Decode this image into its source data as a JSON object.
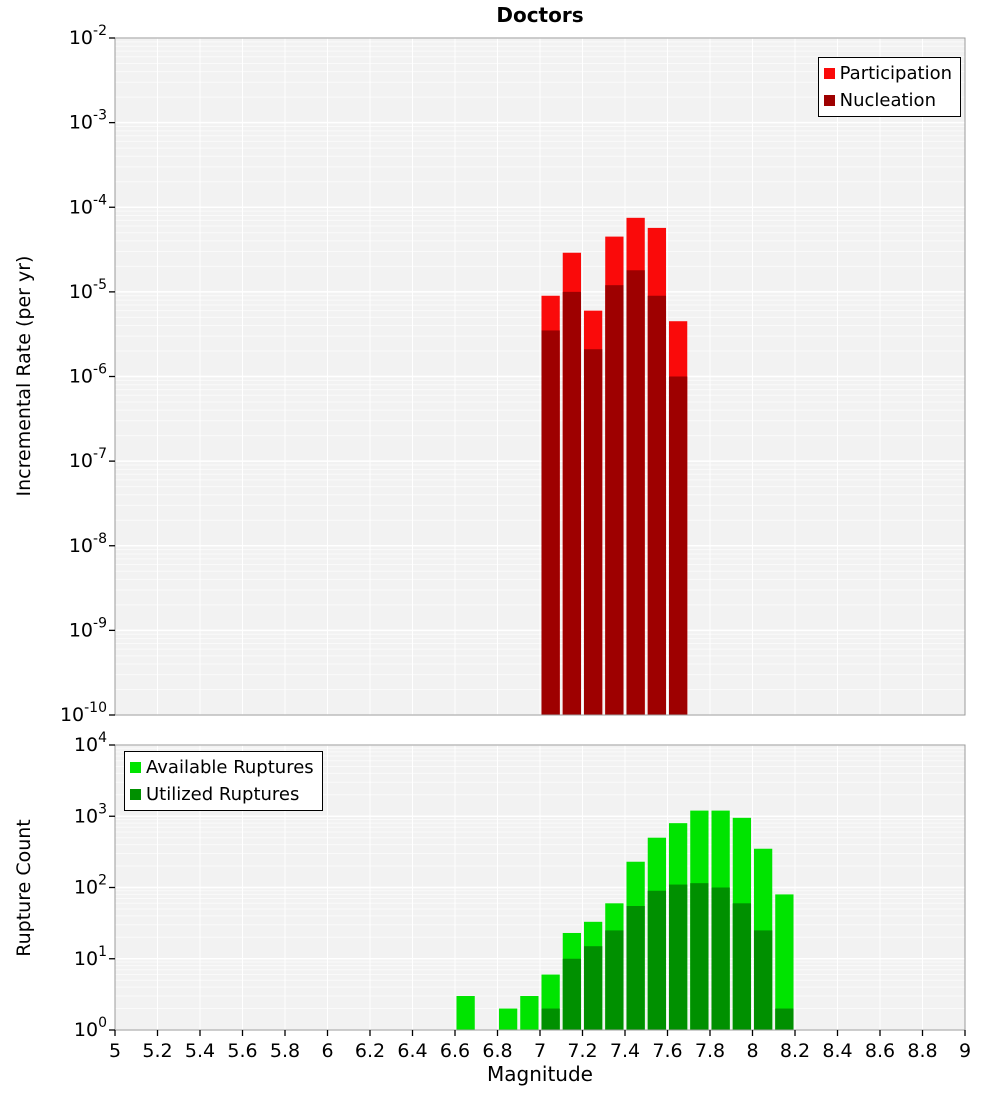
{
  "page": {
    "title": "Doctors",
    "x_axis_label": "Magnitude",
    "top_y_axis_label": "Incremental Rate (per yr)",
    "bottom_y_axis_label": "Rupture Count"
  },
  "chart_data": [
    {
      "type": "bar",
      "title": "Doctors",
      "ylabel": "Incremental Rate (per yr)",
      "xlabel": "Magnitude",
      "y_scale": "log",
      "ylim_exp": [
        -10,
        -2
      ],
      "y_tick_exponents": [
        -2,
        -3,
        -4,
        -5,
        -6,
        -7,
        -8,
        -9,
        -10
      ],
      "xlim": [
        5,
        9
      ],
      "x_tick_step": 0.2,
      "bin_width": 0.1,
      "grid": true,
      "legend_position": "top-right",
      "legend": [
        {
          "label": "Participation",
          "color": "#fa0a0a"
        },
        {
          "label": "Nucleation",
          "color": "#9e0000"
        }
      ],
      "series": [
        {
          "name": "Participation",
          "color": "#fa0a0a",
          "bins": [
            [
              7.0,
              9e-06
            ],
            [
              7.1,
              2.9e-05
            ],
            [
              7.2,
              6e-06
            ],
            [
              7.3,
              4.5e-05
            ],
            [
              7.4,
              7.5e-05
            ],
            [
              7.5,
              5.7e-05
            ],
            [
              7.6,
              4.5e-06
            ]
          ]
        },
        {
          "name": "Nucleation",
          "color": "#9e0000",
          "bins": [
            [
              7.0,
              3.5e-06
            ],
            [
              7.1,
              1e-05
            ],
            [
              7.2,
              2.1e-06
            ],
            [
              7.3,
              1.2e-05
            ],
            [
              7.4,
              1.8e-05
            ],
            [
              7.5,
              9e-06
            ],
            [
              7.6,
              1e-06
            ]
          ]
        }
      ]
    },
    {
      "type": "bar",
      "title": "",
      "ylabel": "Rupture Count",
      "xlabel": "Magnitude",
      "y_scale": "log",
      "ylim_exp": [
        0,
        4
      ],
      "y_tick_exponents": [
        4,
        3,
        2,
        1,
        0
      ],
      "xlim": [
        5,
        9
      ],
      "x_tick_step": 0.2,
      "bin_width": 0.1,
      "grid": true,
      "legend_position": "top-left",
      "legend": [
        {
          "label": "Available Ruptures",
          "color": "#00e400"
        },
        {
          "label": "Utilized Ruptures",
          "color": "#009000"
        }
      ],
      "series": [
        {
          "name": "Available Ruptures",
          "color": "#00e400",
          "bins": [
            [
              6.6,
              3
            ],
            [
              6.8,
              2
            ],
            [
              6.9,
              3
            ],
            [
              7.0,
              6
            ],
            [
              7.1,
              23
            ],
            [
              7.2,
              33
            ],
            [
              7.3,
              60
            ],
            [
              7.4,
              230
            ],
            [
              7.5,
              500
            ],
            [
              7.6,
              800
            ],
            [
              7.7,
              1200
            ],
            [
              7.8,
              1200
            ],
            [
              7.9,
              950
            ],
            [
              8.0,
              350
            ],
            [
              8.1,
              80
            ]
          ]
        },
        {
          "name": "Utilized Ruptures",
          "color": "#009000",
          "bins": [
            [
              7.0,
              2
            ],
            [
              7.1,
              10
            ],
            [
              7.2,
              15
            ],
            [
              7.3,
              25
            ],
            [
              7.4,
              55
            ],
            [
              7.5,
              90
            ],
            [
              7.6,
              110
            ],
            [
              7.7,
              115
            ],
            [
              7.8,
              100
            ],
            [
              7.9,
              60
            ],
            [
              8.0,
              25
            ],
            [
              8.1,
              2
            ]
          ]
        }
      ]
    }
  ]
}
